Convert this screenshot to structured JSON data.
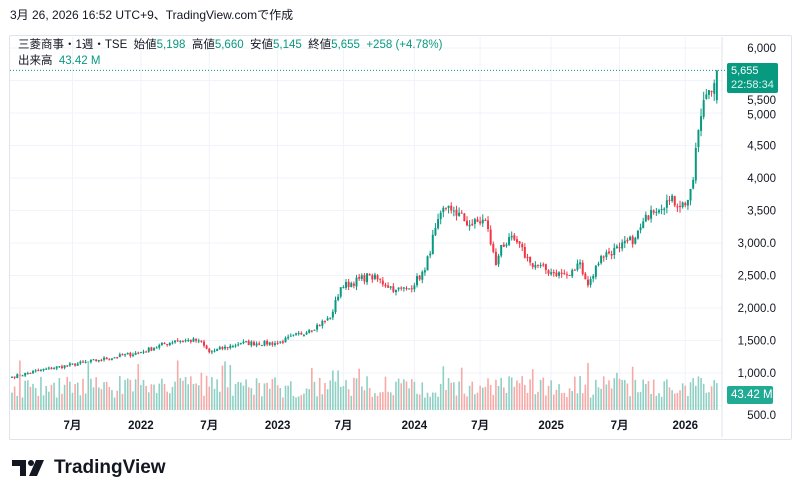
{
  "header": {
    "created": "3月 26, 2026 16:52 UTC+9、TradingView.comで作成"
  },
  "legend": {
    "symbol": "三菱商事・1週・TSE",
    "open_label": "始値",
    "open": "5,198",
    "high_label": "高値",
    "high": "5,660",
    "low_label": "安値",
    "low": "5,145",
    "close_label": "終値",
    "close": "5,655",
    "change": "+258 (+4.78%)",
    "volume_label": "出来高",
    "volume": "43.42 M"
  },
  "price_label": {
    "price": "5,655",
    "countdown": "22:58:34"
  },
  "volume_label": "43.42 M",
  "logo": "TradingView",
  "colors": {
    "up": "#089981",
    "down": "#F23645",
    "up_vol": "#8fd0c4",
    "down_vol": "#f7a9a7"
  },
  "chart_data": {
    "type": "candlestick",
    "interval": "1 week",
    "y_ticks": [
      "6,000",
      "5,500",
      "5,000",
      "4,500",
      "4,000",
      "3,500",
      "3,000.0",
      "2,500.0",
      "2,000.0",
      "1,500.0",
      "1,000.0",
      "500.0"
    ],
    "y_tick_values": [
      6000,
      5500,
      5000,
      4500,
      4000,
      3500,
      3000,
      2500,
      2000,
      1500,
      1000,
      500
    ],
    "x_ticks": [
      {
        "label": "7月",
        "week": 23
      },
      {
        "label": "2022",
        "week": 49
      },
      {
        "label": "7月",
        "week": 75
      },
      {
        "label": "2023",
        "week": 101
      },
      {
        "label": "7月",
        "week": 126
      },
      {
        "label": "2024",
        "week": 153
      },
      {
        "label": "7月",
        "week": 178
      },
      {
        "label": "2025",
        "week": 205
      },
      {
        "label": "7月",
        "week": 231
      },
      {
        "label": "2026",
        "week": 256
      }
    ],
    "close_keypoints_week_price": [
      [
        0,
        940
      ],
      [
        11,
        1045
      ],
      [
        33,
        1200
      ],
      [
        49,
        1320
      ],
      [
        62,
        1500
      ],
      [
        71,
        1500
      ],
      [
        75,
        1320
      ],
      [
        87,
        1460
      ],
      [
        101,
        1460
      ],
      [
        113,
        1660
      ],
      [
        121,
        1850
      ],
      [
        125,
        2320
      ],
      [
        136,
        2500
      ],
      [
        146,
        2280
      ],
      [
        151,
        2300
      ],
      [
        157,
        2580
      ],
      [
        161,
        3230
      ],
      [
        165,
        3540
      ],
      [
        168,
        3500
      ],
      [
        174,
        3280
      ],
      [
        180,
        3350
      ],
      [
        184,
        2660
      ],
      [
        186,
        2970
      ],
      [
        191,
        3050
      ],
      [
        197,
        2700
      ],
      [
        205,
        2550
      ],
      [
        212,
        2500
      ],
      [
        216,
        2700
      ],
      [
        219,
        2350
      ],
      [
        224,
        2800
      ],
      [
        231,
        2920
      ],
      [
        237,
        3080
      ],
      [
        243,
        3510
      ],
      [
        250,
        3660
      ],
      [
        256,
        3580
      ],
      [
        259,
        3970
      ],
      [
        261,
        4740
      ],
      [
        263,
        5200
      ],
      [
        266,
        5320
      ],
      [
        268,
        5655
      ]
    ],
    "last_candle": {
      "open": 5198,
      "high": 5660,
      "low": 5145,
      "close": 5655,
      "volume_m": 43.42
    }
  }
}
